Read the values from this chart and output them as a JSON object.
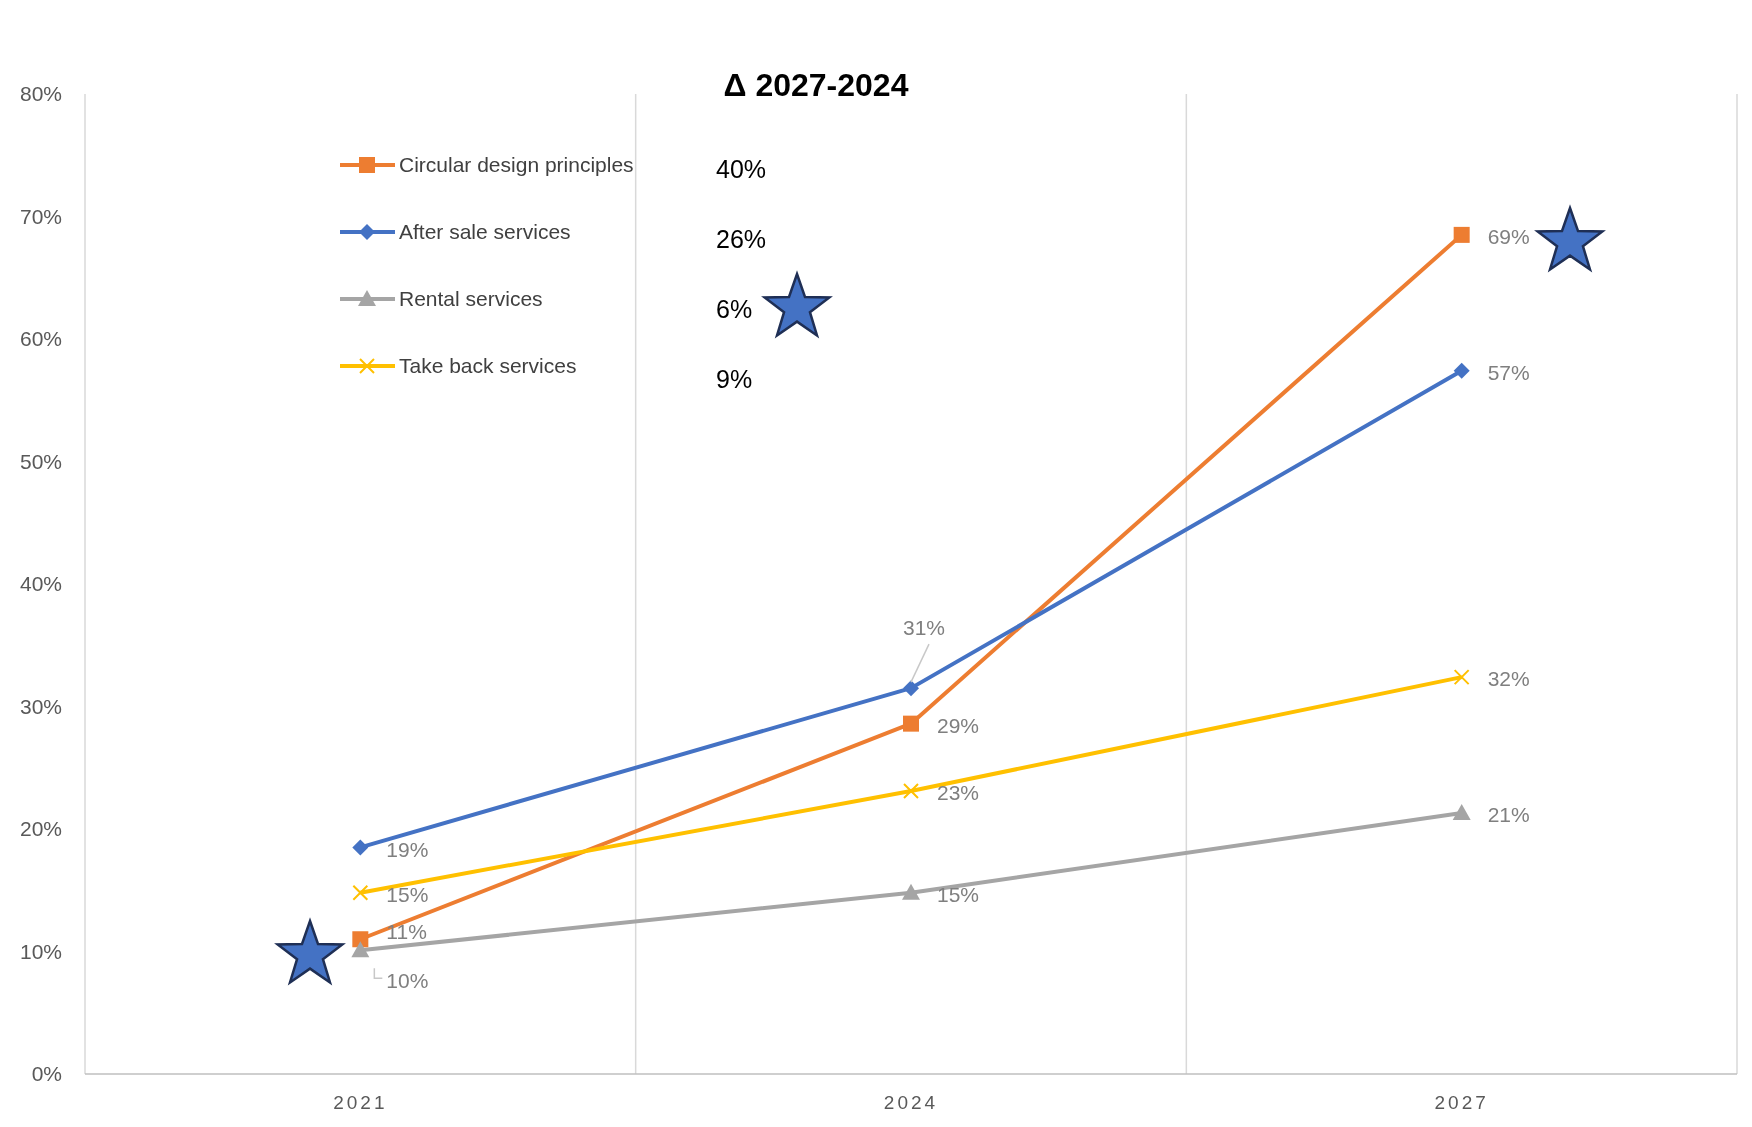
{
  "chart_data": {
    "type": "line",
    "title": "Δ  2027-2024",
    "categories": [
      "2021",
      "2024",
      "2027"
    ],
    "series": [
      {
        "name": "Circular design principles",
        "color": "#ed7d31",
        "marker": "square",
        "values": [
          11.0,
          28.6,
          68.5
        ],
        "value_labels": [
          "11%",
          "29%",
          "69%"
        ]
      },
      {
        "name": "After sale services",
        "color": "#4472c4",
        "marker": "diamond",
        "values": [
          18.5,
          31.5,
          57.4
        ],
        "value_labels": [
          "19%",
          "31%",
          "57%"
        ]
      },
      {
        "name": "Rental services",
        "color": "#a5a5a5",
        "marker": "triangle",
        "values": [
          10.1,
          14.8,
          21.3
        ],
        "value_labels": [
          "10%",
          "15%",
          "21%"
        ]
      },
      {
        "name": "Take back services",
        "color": "#ffc000",
        "marker": "cross",
        "values": [
          14.8,
          23.1,
          32.4
        ],
        "value_labels": [
          "15%",
          "23%",
          "32%"
        ]
      }
    ],
    "annotations": [
      "40%",
      "26%",
      "6%",
      "9%"
    ],
    "ylim": [
      0,
      80
    ],
    "yticks": [
      {
        "value": 0,
        "label": "0%"
      },
      {
        "value": 10,
        "label": "10%"
      },
      {
        "value": 20,
        "label": "20%"
      },
      {
        "value": 30,
        "label": "30%"
      },
      {
        "value": 40,
        "label": "40%"
      },
      {
        "value": 50,
        "label": "50%"
      },
      {
        "value": 60,
        "label": "60%"
      },
      {
        "value": 70,
        "label": "70%"
      },
      {
        "value": 80,
        "label": "80%"
      }
    ],
    "grid": "x",
    "legend": "top left"
  }
}
